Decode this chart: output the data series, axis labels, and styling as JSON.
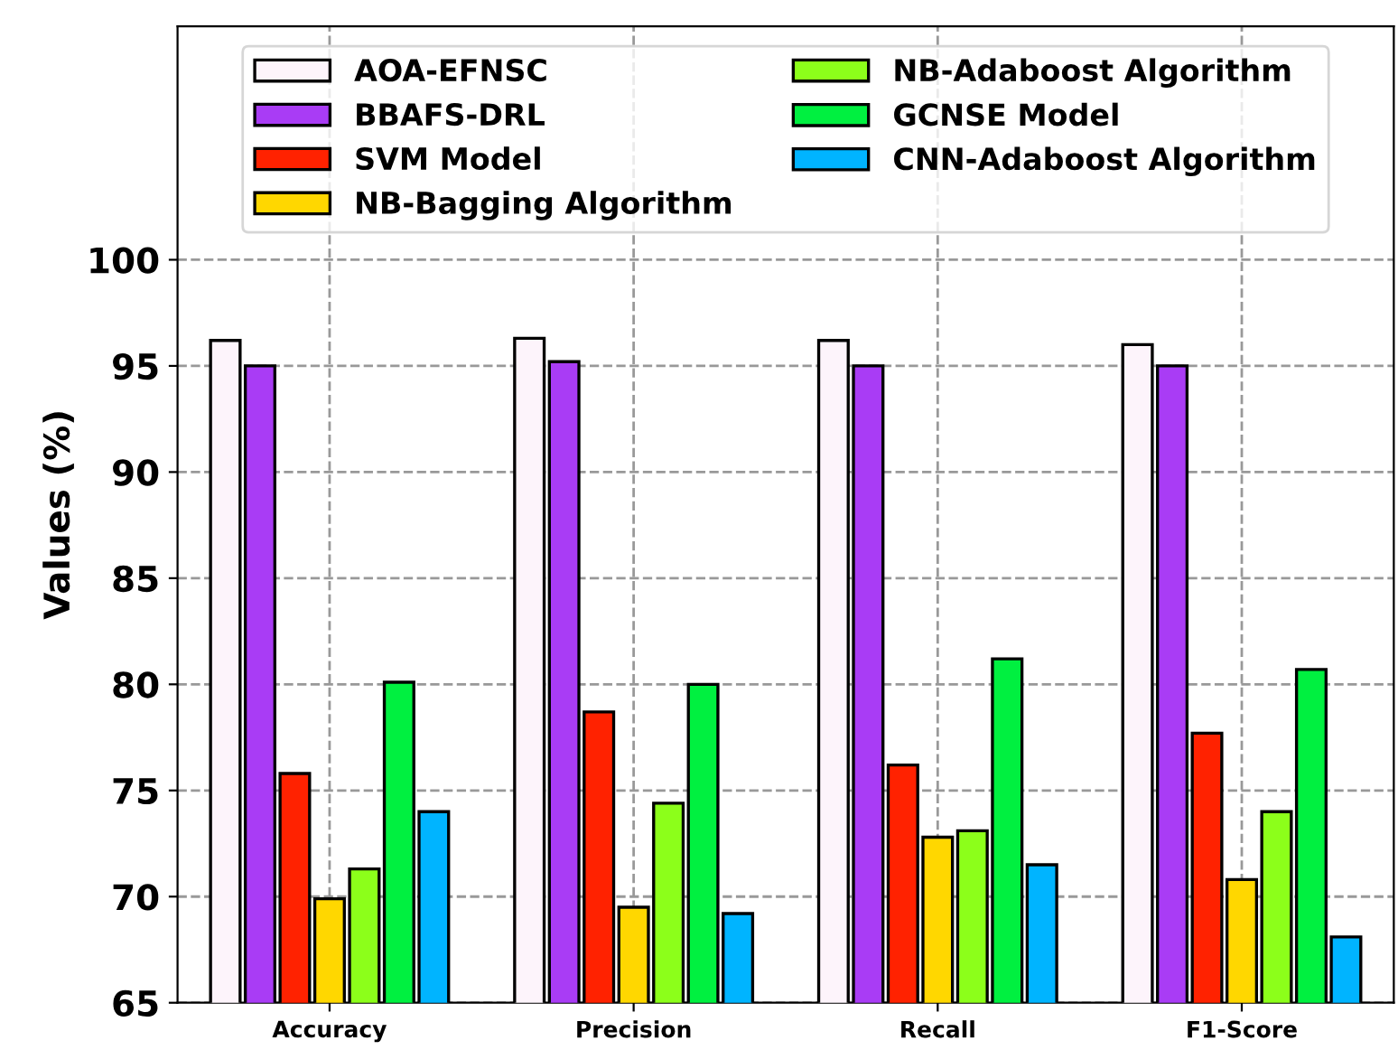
{
  "chart_data": {
    "type": "bar",
    "ylabel": "Values (%)",
    "categories": [
      "Accuracy",
      "Precision",
      "Recall",
      "F1-Score"
    ],
    "series": [
      {
        "name": "AOA-EFNSC",
        "color": "#fdf4fb",
        "values": [
          96.2,
          96.3,
          96.2,
          96.0
        ]
      },
      {
        "name": "BBAFS-DRL",
        "color": "#a93cf5",
        "values": [
          95.0,
          95.2,
          95.0,
          95.0
        ]
      },
      {
        "name": "SVM Model",
        "color": "#ff2200",
        "values": [
          75.8,
          78.7,
          76.2,
          77.7
        ]
      },
      {
        "name": "NB-Bagging Algorithm",
        "color": "#ffd700",
        "values": [
          69.9,
          69.5,
          72.8,
          70.8
        ]
      },
      {
        "name": "NB-Adaboost Algorithm",
        "color": "#8cff1a",
        "values": [
          71.3,
          74.4,
          73.1,
          74.0
        ]
      },
      {
        "name": "GCNSE Model",
        "color": "#00f040",
        "values": [
          80.1,
          80.0,
          81.2,
          80.7
        ]
      },
      {
        "name": "CNN-Adaboost Algorithm",
        "color": "#00b4ff",
        "values": [
          74.0,
          69.2,
          71.5,
          68.1
        ]
      }
    ],
    "ylim": [
      65,
      111
    ],
    "yticks": [
      65,
      70,
      75,
      80,
      85,
      90,
      95,
      100
    ],
    "grid": true,
    "legend": "top"
  }
}
